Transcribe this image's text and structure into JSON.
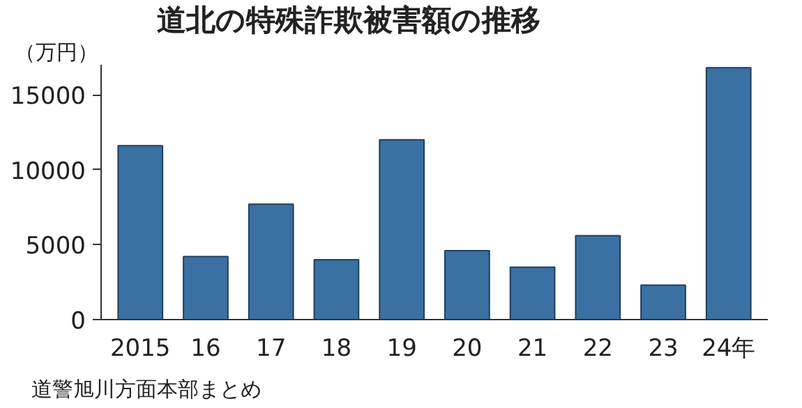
{
  "chart_data": {
    "type": "bar",
    "title": "道北の特殊詐欺被害額の推移",
    "ylabel": "（万円）",
    "categories": [
      "2015",
      "16",
      "17",
      "18",
      "19",
      "20",
      "21",
      "22",
      "23",
      "24年"
    ],
    "values": [
      11600,
      4200,
      7700,
      4000,
      12000,
      4600,
      3500,
      5600,
      2300,
      16800
    ],
    "color": "#3a70a2",
    "ylim": [
      0,
      17000
    ],
    "yticks": [
      0,
      5000,
      10000,
      15000
    ],
    "grid": false,
    "annotations": [
      "道警旭川方面本部まとめ"
    ]
  }
}
